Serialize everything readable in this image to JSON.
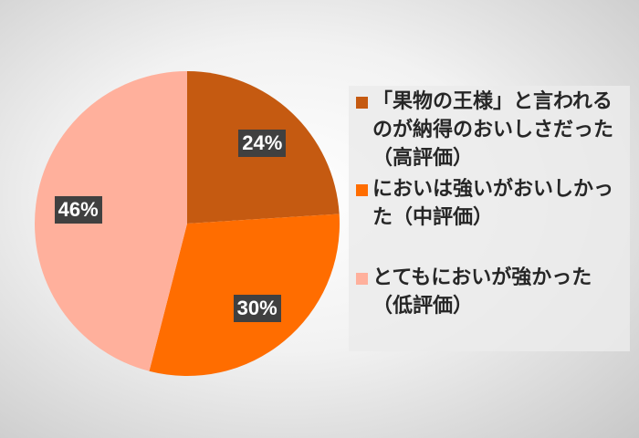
{
  "chart_data": {
    "type": "pie",
    "categories": [
      "「果物の王様」と言われるのが納得のおいしさだった（高評価）",
      "においは強いがおいしかった（中評価）",
      "とてもにおいが強かった（低評価）"
    ],
    "values": [
      24,
      30,
      46
    ],
    "data_labels": [
      "24%",
      "30%",
      "46%"
    ],
    "colors": [
      "#C55A11",
      "#FF6D00",
      "#FFB09C"
    ],
    "legend_position": "right",
    "start_angle": "12 o'clock, clockwise"
  }
}
